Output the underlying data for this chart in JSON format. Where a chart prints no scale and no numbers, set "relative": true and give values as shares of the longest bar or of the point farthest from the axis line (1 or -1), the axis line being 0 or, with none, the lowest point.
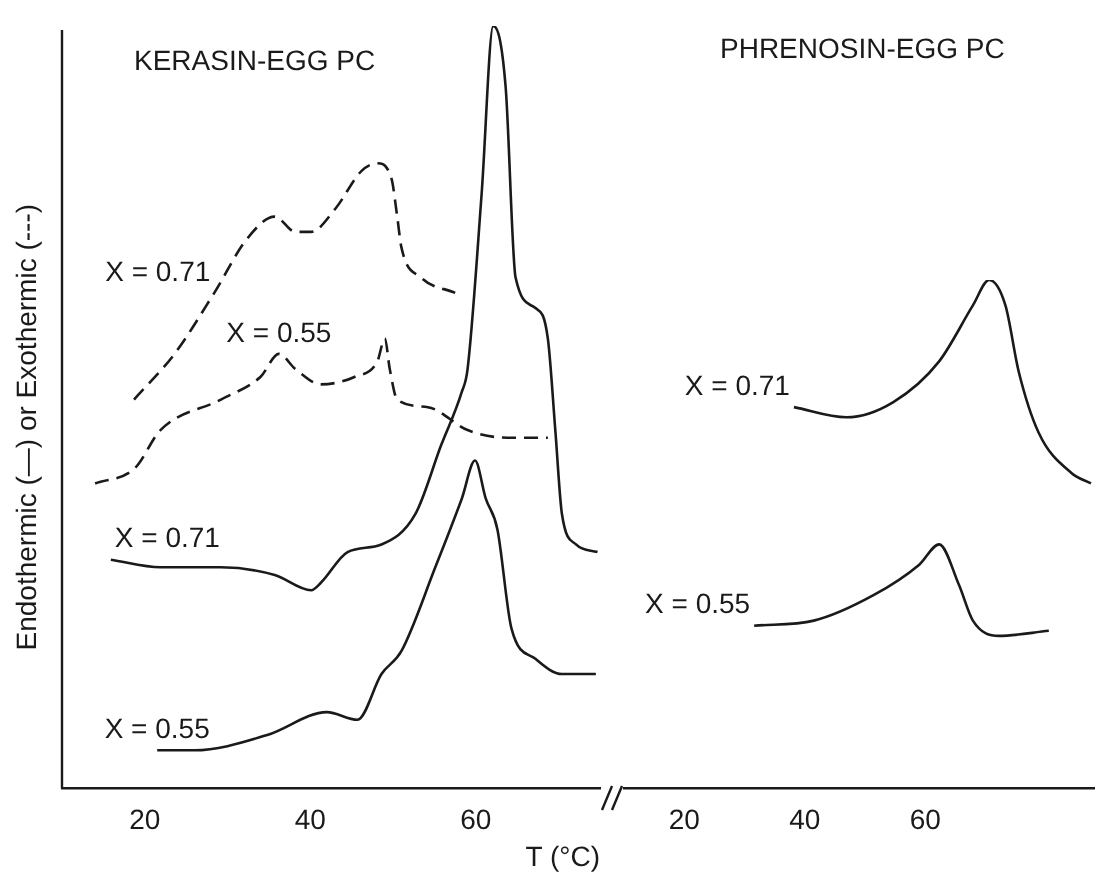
{
  "chart_data": [
    {
      "type": "line",
      "title": "KERASIN-EGG PC",
      "ylabel": "Endothermic (—) or Exothermic (---)",
      "xlabel": "T (°C)",
      "relative": true,
      "xlim": [
        10,
        75
      ],
      "xticks": [
        20,
        40,
        60
      ],
      "legend": false,
      "grid": false,
      "marker": "none",
      "series": [
        {
          "name": "X = 0.71",
          "color": "#1a1a1a",
          "line_style": "dashed",
          "x": [
            18.7,
            23.6,
            28.4,
            32.3,
            35.7,
            38.2,
            40.1,
            43,
            46.2,
            48.1,
            49.8,
            50.5,
            51,
            53.4,
            57.5
          ],
          "values": [
            0.51,
            0.57,
            0.65,
            0.72,
            0.75,
            0.73,
            0.73,
            0.76,
            0.81,
            0.82,
            0.8,
            0.75,
            0.71,
            0.67,
            0.65
          ]
        },
        {
          "name": "X = 0.55",
          "color": "#1a1a1a",
          "line_style": "dashed",
          "x": [
            14,
            18.8,
            21.9,
            29.2,
            34,
            36.2,
            38.2,
            41.3,
            45.4,
            48.1,
            49,
            49.6,
            50.5,
            54.2,
            59,
            63.8,
            68.7
          ],
          "values": [
            0.4,
            0.42,
            0.47,
            0.51,
            0.54,
            0.57,
            0.55,
            0.53,
            0.54,
            0.56,
            0.59,
            0.55,
            0.51,
            0.5,
            0.47,
            0.46,
            0.46
          ]
        },
        {
          "name": "X = 0.71",
          "color": "#1a1a1a",
          "line_style": "solid",
          "x": [
            15.9,
            21.9,
            29.2,
            35.7,
            40.1,
            41.3,
            44.5,
            48.6,
            52.7,
            55.8,
            58.3,
            59,
            60.7,
            62.1,
            63.6,
            64.8,
            67.2,
            68.7,
            69.6,
            70.4,
            72.1,
            74.7
          ],
          "values": [
            0.3,
            0.29,
            0.29,
            0.28,
            0.26,
            0.27,
            0.31,
            0.32,
            0.36,
            0.45,
            0.52,
            0.55,
            0.78,
            1,
            0.92,
            0.67,
            0.63,
            0.59,
            0.47,
            0.36,
            0.32,
            0.31
          ]
        },
        {
          "name": "X = 0.55",
          "color": "#1a1a1a",
          "line_style": "solid",
          "x": [
            21.5,
            26,
            34.8,
            42,
            45.7,
            48.6,
            51,
            55.1,
            58.3,
            59.9,
            61.2,
            62.6,
            64.3,
            67.2,
            70.4,
            74.5
          ],
          "values": [
            0.05,
            0.05,
            0.07,
            0.1,
            0.09,
            0.15,
            0.18,
            0.29,
            0.38,
            0.43,
            0.38,
            0.34,
            0.21,
            0.17,
            0.15,
            0.15
          ]
        }
      ]
    },
    {
      "type": "line",
      "title": "PHRENOSIN-EGG PC",
      "relative": true,
      "xlim": [
        10,
        88
      ],
      "xticks": [
        20,
        40,
        60
      ],
      "legend": false,
      "grid": false,
      "marker": "none",
      "series": [
        {
          "name": "X = 0.71",
          "color": "#1a1a1a",
          "line_style": "solid",
          "x": [
            38.2,
            46.9,
            54.7,
            62.3,
            67.9,
            70.6,
            73.3,
            75.5,
            78.8,
            84.3,
            87.5
          ],
          "values": [
            0.75,
            0.73,
            0.76,
            0.84,
            0.95,
            1,
            0.95,
            0.82,
            0.7,
            0.62,
            0.6
          ]
        },
        {
          "name": "X = 0.55",
          "color": "#1a1a1a",
          "line_style": "solid",
          "x": [
            31.6,
            41.5,
            51.4,
            59,
            62.3,
            65.6,
            67.9,
            72.2,
            80.5
          ],
          "values": [
            0.32,
            0.33,
            0.38,
            0.44,
            0.48,
            0.4,
            0.33,
            0.3,
            0.31
          ]
        }
      ]
    }
  ]
}
